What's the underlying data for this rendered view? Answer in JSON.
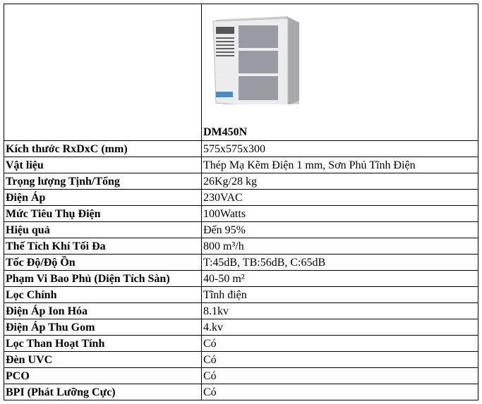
{
  "header": {
    "model": "DM450N",
    "image": "air-purifier-unit-photo"
  },
  "rows": [
    {
      "label": "Kích thước RxDxC (mm)",
      "value": "575x575x300"
    },
    {
      "label": "Vật liệu",
      "value": "Thép Mạ Kẽm Điện 1 mm, Sơn Phủ Tĩnh Điện"
    },
    {
      "label": "Trọng lượng Tịnh/Tổng",
      "value": "26Kg/28 kg"
    },
    {
      "label": "Điện Áp",
      "value": "230VAC"
    },
    {
      "label": "Mức Tiêu Thụ Điện",
      "value": "100Watts"
    },
    {
      "label": "Hiệu quả",
      "value": "Đến 95%"
    },
    {
      "label": "Thế Tích Khí Tối Đa",
      "value": "800 m³/h"
    },
    {
      "label": "Tốc Độ/Độ Ồn",
      "value": "T:45dB, TB:56dB, C:65dB"
    },
    {
      "label": "Phạm Vi Bao Phủ (Diện Tích Sàn)",
      "value": "40-50 m²"
    },
    {
      "label": "Lọc Chính",
      "value": "Tĩnh điện"
    },
    {
      "label": "Điện Áp Ion Hóa",
      "value": "8.1kv"
    },
    {
      "label": "Điện Áp Thu Gom",
      "value": "4.kv"
    },
    {
      "label": "Lọc Than Hoạt Tính",
      "value": "Có"
    },
    {
      "label": "Đèn UVC",
      "value": "Có"
    },
    {
      "label": "PCO",
      "value": "Có"
    },
    {
      "label": "BPI (Phát Lưỡng Cực)",
      "value": "Có"
    }
  ]
}
